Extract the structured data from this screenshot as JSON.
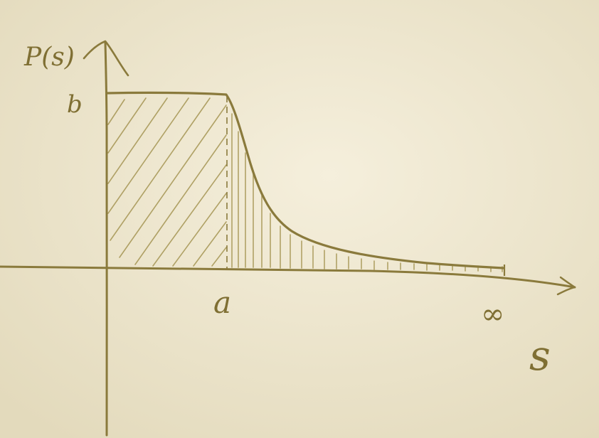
{
  "diagram": {
    "type": "hand-drawn probability density sketch",
    "y_axis_label": "P(s)",
    "y_tick_label": "b",
    "x_tick_label": "a",
    "x_end_label": "∞",
    "x_axis_label": "s",
    "ink_color": "#8a7a3c",
    "paper_color": "#efe8d2"
  }
}
